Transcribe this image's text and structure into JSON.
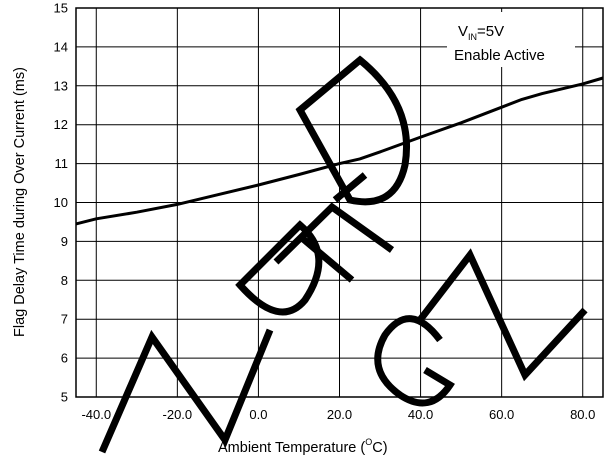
{
  "chart_data": {
    "type": "line",
    "title": "",
    "xlabel": "Ambient Temperature (",
    "xlabel_sup": "O",
    "xlabel_end": "C)",
    "ylabel": "Flag Delay Time during Over Current (ms)",
    "xlim": [
      -45,
      85
    ],
    "ylim": [
      5,
      15
    ],
    "x_ticks": [
      -40,
      -20,
      0,
      20,
      40,
      60,
      80
    ],
    "x_tick_labels": [
      "-40.0",
      "-20.0",
      "0.0",
      "20.0",
      "40.0",
      "60.0",
      "80.0"
    ],
    "y_ticks": [
      5,
      6,
      7,
      8,
      9,
      10,
      11,
      12,
      13,
      14,
      15
    ],
    "y_tick_labels": [
      "5",
      "6",
      "7",
      "8",
      "9",
      "10",
      "11",
      "12",
      "13",
      "14",
      "15"
    ],
    "grid": true,
    "series": [
      {
        "x": [
          -45,
          -40,
          -30,
          -20,
          -10,
          0,
          10,
          20,
          25,
          30,
          40,
          50,
          60,
          65,
          70,
          80,
          85
        ],
        "y": [
          9.45,
          9.58,
          9.75,
          9.95,
          10.2,
          10.45,
          10.72,
          11.0,
          11.12,
          11.3,
          11.68,
          12.05,
          12.45,
          12.65,
          12.8,
          13.05,
          13.2
        ]
      }
    ],
    "annotation": {
      "line1_main": "V",
      "line1_sub": "IN",
      "line1_end": "=5V",
      "line2": "Enable Active",
      "placement": "top-right"
    }
  }
}
